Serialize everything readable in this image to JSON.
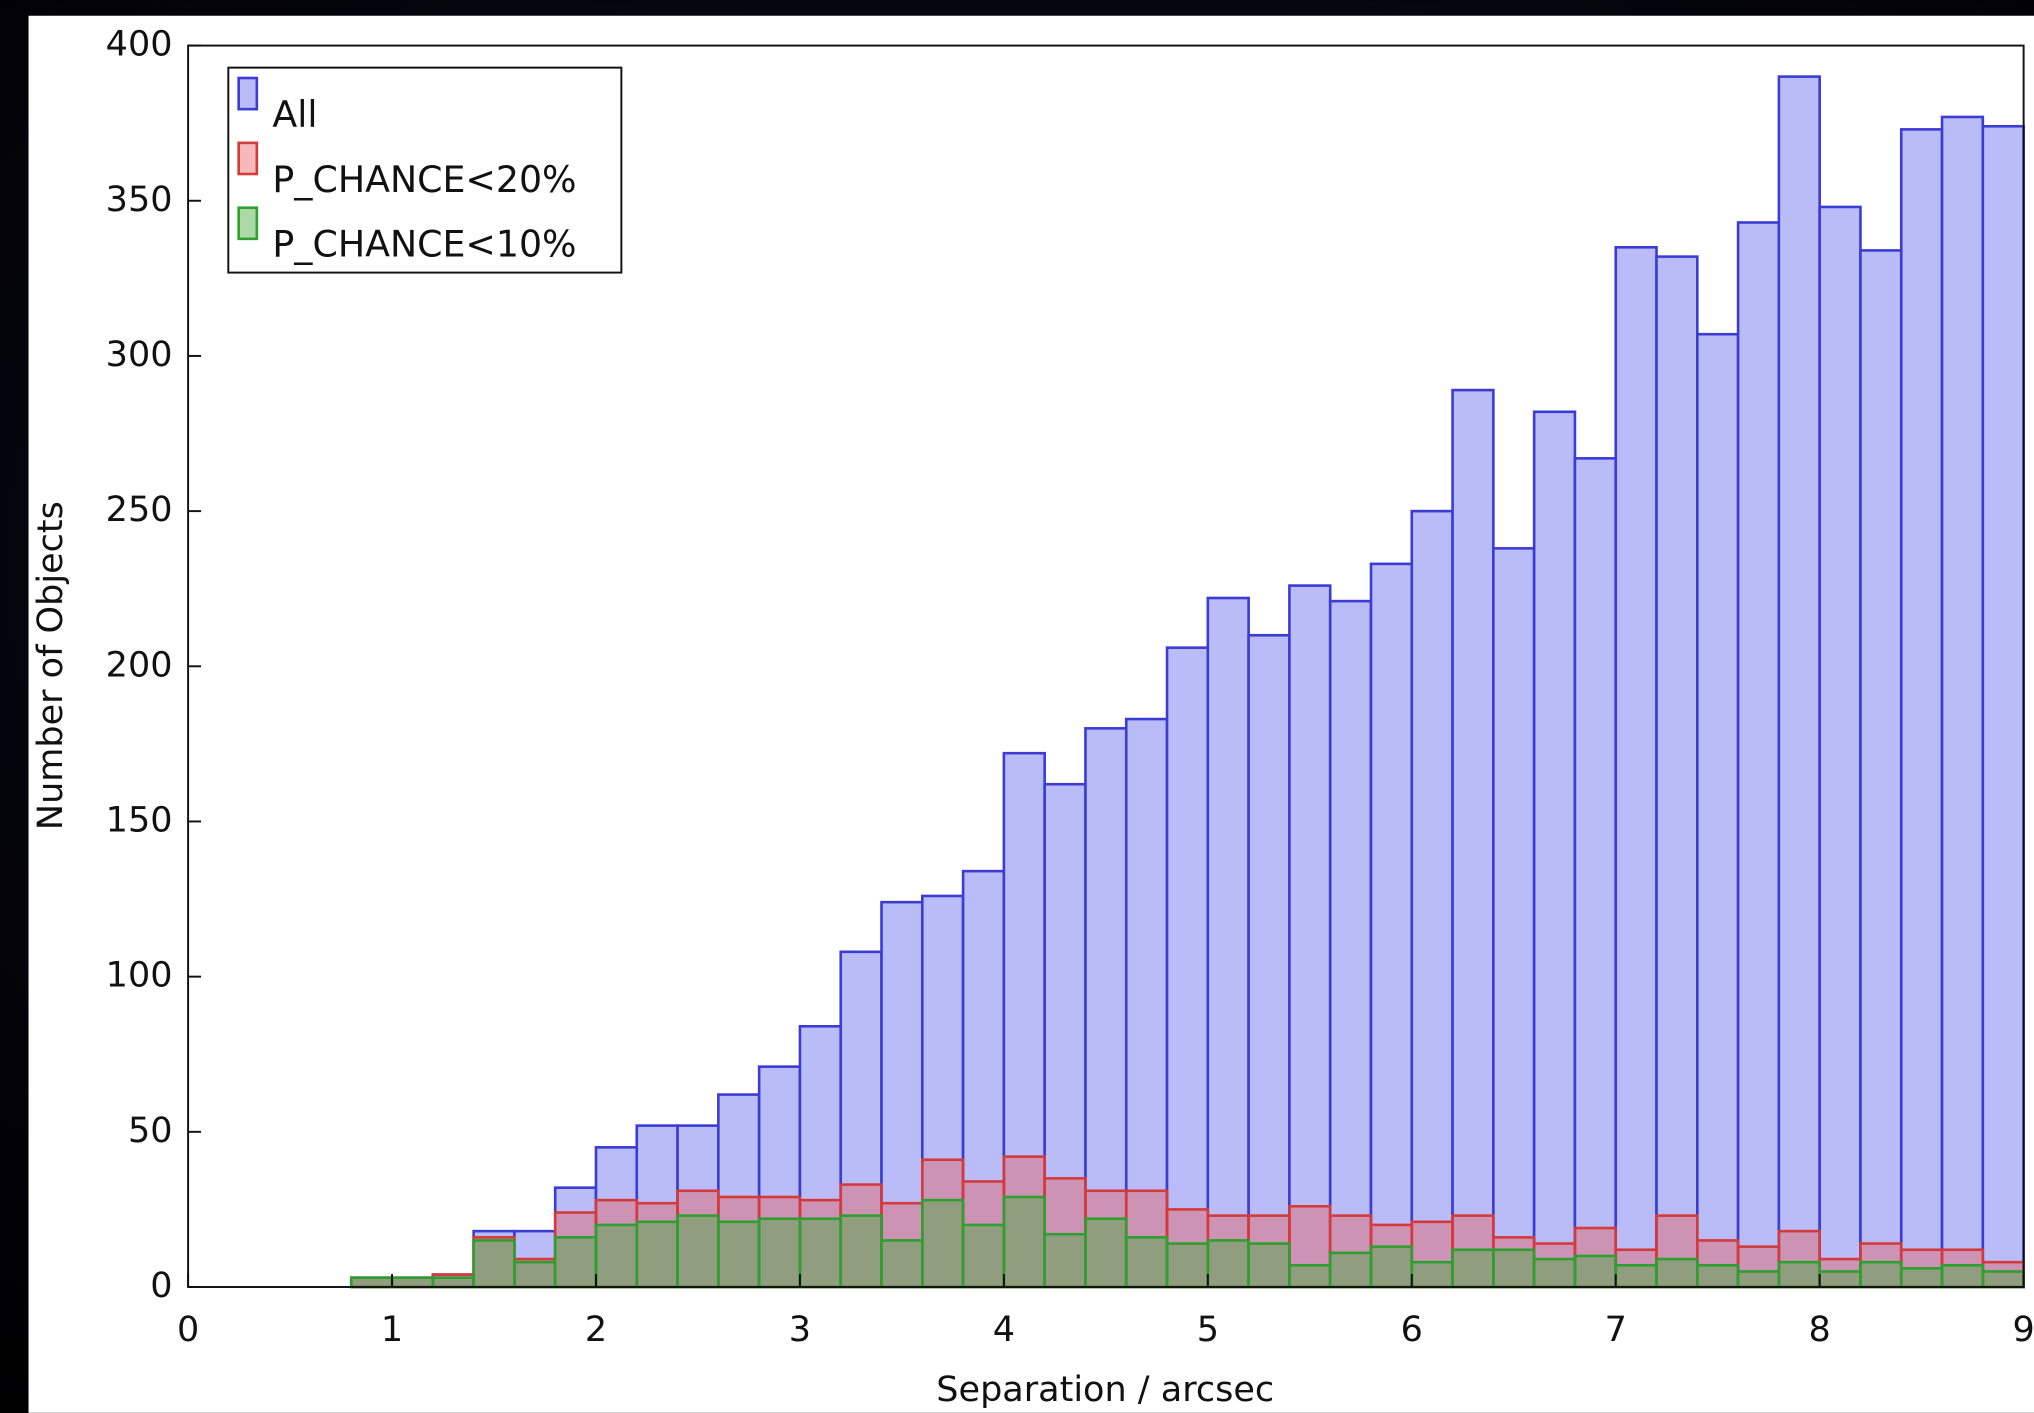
{
  "chart_data": {
    "type": "histogram",
    "x_label": "Separation / arcsec",
    "y_label": "Number of Objects",
    "bins": [
      0.8,
      1.0,
      1.2,
      1.4,
      1.6,
      1.8,
      2.0,
      2.2,
      2.4,
      2.6,
      2.8,
      3.0,
      3.2,
      3.4,
      3.6,
      3.8,
      4.0,
      4.2,
      4.4,
      4.6,
      4.8,
      5.0,
      5.2,
      5.4,
      5.6,
      5.8,
      6.0,
      6.2,
      6.4,
      6.6,
      6.8,
      7.0,
      7.2,
      7.4,
      7.6,
      7.8,
      8.0,
      8.2,
      8.4,
      8.6,
      8.8,
      9.0
    ],
    "series": [
      {
        "name": "All",
        "color": "#3b3bd6",
        "fill": "#b9bcf6",
        "values": [
          3,
          3,
          4,
          18,
          18,
          32,
          45,
          52,
          52,
          62,
          71,
          84,
          108,
          124,
          126,
          134,
          172,
          162,
          180,
          183,
          206,
          222,
          210,
          226,
          221,
          233,
          250,
          289,
          238,
          282,
          267,
          335,
          332,
          307,
          343,
          390,
          348,
          334,
          373,
          377,
          374
        ]
      },
      {
        "name": "P_CHANCE<20%",
        "color": "#d43a3a",
        "fill": "rgba(232,90,90,0.42)",
        "values": [
          3,
          3,
          4,
          16,
          9,
          24,
          28,
          27,
          31,
          29,
          29,
          28,
          33,
          27,
          41,
          34,
          42,
          35,
          31,
          31,
          25,
          23,
          23,
          26,
          23,
          20,
          21,
          23,
          16,
          14,
          19,
          12,
          23,
          15,
          13,
          18,
          9,
          14,
          12,
          12,
          8
        ]
      },
      {
        "name": "P_CHANCE<10%",
        "color": "#2f9f2f",
        "fill": "rgba(70,170,60,0.45)",
        "values": [
          3,
          3,
          3,
          15,
          8,
          16,
          20,
          21,
          23,
          21,
          22,
          22,
          23,
          15,
          28,
          20,
          29,
          17,
          22,
          16,
          14,
          15,
          14,
          7,
          11,
          13,
          8,
          12,
          12,
          9,
          10,
          7,
          9,
          7,
          5,
          8,
          5,
          8,
          6,
          7,
          5
        ]
      }
    ],
    "xlim": [
      0,
      9
    ],
    "xticks": [
      0,
      1,
      2,
      3,
      4,
      5,
      6,
      7,
      8,
      9
    ],
    "ylim": [
      0,
      400
    ],
    "yticks": [
      0,
      50,
      100,
      150,
      200,
      250,
      300,
      350,
      400
    ],
    "grid": false,
    "legend": "upper left"
  }
}
